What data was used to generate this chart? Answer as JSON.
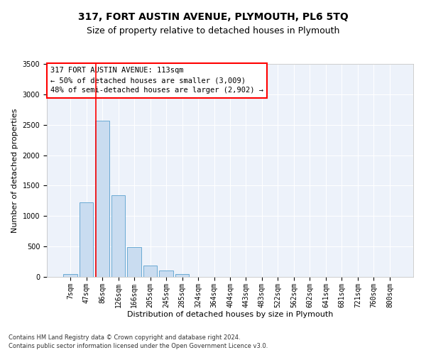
{
  "title": "317, FORT AUSTIN AVENUE, PLYMOUTH, PL6 5TQ",
  "subtitle": "Size of property relative to detached houses in Plymouth",
  "xlabel": "Distribution of detached houses by size in Plymouth",
  "ylabel": "Number of detached properties",
  "bar_color": "#c9dcf0",
  "bar_edge_color": "#6aaad4",
  "categories": [
    "7sqm",
    "47sqm",
    "86sqm",
    "126sqm",
    "166sqm",
    "205sqm",
    "245sqm",
    "285sqm",
    "324sqm",
    "364sqm",
    "404sqm",
    "443sqm",
    "483sqm",
    "522sqm",
    "562sqm",
    "602sqm",
    "641sqm",
    "681sqm",
    "721sqm",
    "760sqm",
    "800sqm"
  ],
  "values": [
    50,
    1220,
    2570,
    1340,
    490,
    185,
    100,
    50,
    5,
    5,
    0,
    0,
    0,
    0,
    0,
    0,
    0,
    0,
    0,
    0,
    0
  ],
  "ylim": [
    0,
    3500
  ],
  "yticks": [
    0,
    500,
    1000,
    1500,
    2000,
    2500,
    3000,
    3500
  ],
  "red_line_x": 1.6,
  "annotation_text": "317 FORT AUSTIN AVENUE: 113sqm\n← 50% of detached houses are smaller (3,009)\n48% of semi-detached houses are larger (2,902) →",
  "footnote1": "Contains HM Land Registry data © Crown copyright and database right 2024.",
  "footnote2": "Contains public sector information licensed under the Open Government Licence v3.0.",
  "background_color": "#edf2fa",
  "grid_color": "#ffffff",
  "title_fontsize": 10,
  "subtitle_fontsize": 9,
  "axis_label_fontsize": 8,
  "tick_fontsize": 7,
  "annotation_fontsize": 7.5,
  "footnote_fontsize": 6
}
